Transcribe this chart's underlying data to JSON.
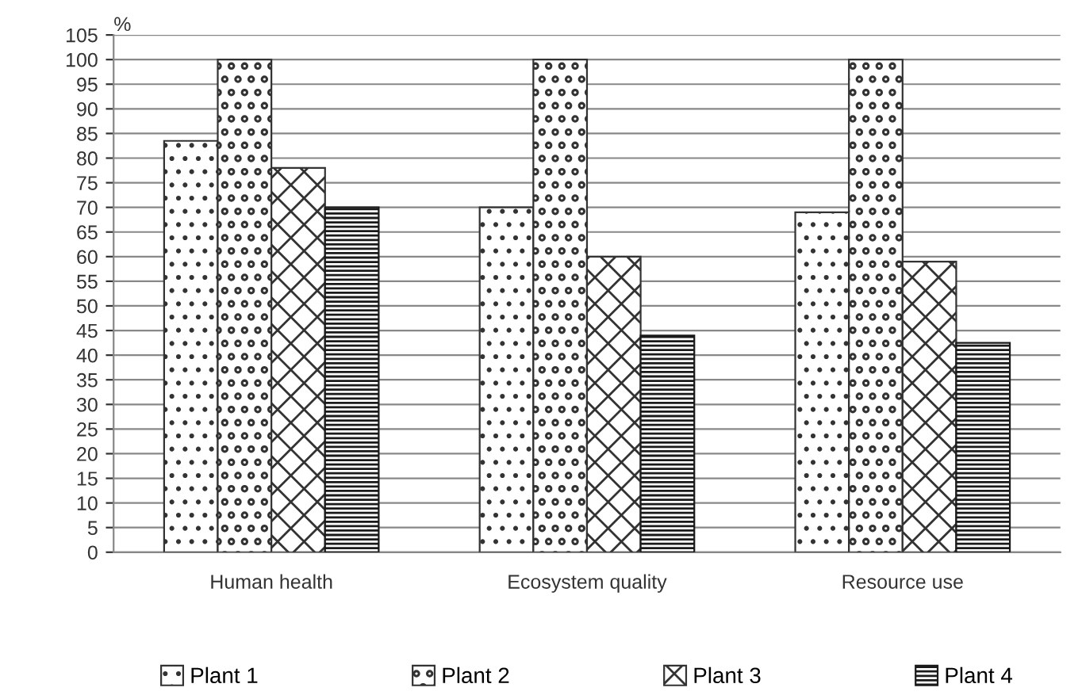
{
  "chart_data": {
    "type": "bar",
    "ylabel": "%",
    "categories": [
      "Human health",
      "Ecosystem quality",
      "Resource use"
    ],
    "series": [
      {
        "name": "Plant 1",
        "color": "#333333",
        "values": [
          83.5,
          70,
          69
        ]
      },
      {
        "name": "Plant 2",
        "color": "#333333",
        "values": [
          100,
          100,
          100
        ]
      },
      {
        "name": "Plant 3",
        "color": "#333333",
        "values": [
          78,
          60,
          59
        ]
      },
      {
        "name": "Plant 4",
        "color": "#1a1a1a",
        "values": [
          70,
          44,
          42.5
        ]
      }
    ],
    "ylim": [
      0,
      105
    ],
    "yticks": [
      0,
      5,
      10,
      15,
      20,
      25,
      30,
      35,
      40,
      45,
      50,
      55,
      60,
      65,
      70,
      75,
      80,
      85,
      90,
      95,
      100,
      105
    ],
    "grid": "y",
    "legend": "bottom"
  }
}
